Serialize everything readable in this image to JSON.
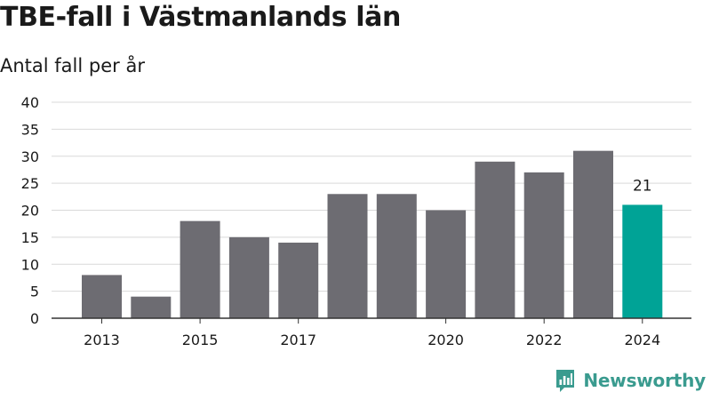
{
  "header": {
    "title": "TBE-fall i Västmanlands län",
    "subtitle": "Antal fall per år"
  },
  "brand": {
    "name": "Newsworthy",
    "icon": "newsworthy-logo-icon",
    "color": "#3a9b8f"
  },
  "chart_data": {
    "type": "bar",
    "categories": [
      "2013",
      "2014",
      "2015",
      "2016",
      "2017",
      "2018",
      "2019",
      "2020",
      "2021",
      "2022",
      "2023",
      "2024"
    ],
    "x_tick_labels": [
      "2013",
      "",
      "2015",
      "",
      "2017",
      "",
      "",
      "2020",
      "",
      "2022",
      "",
      "2024"
    ],
    "values": [
      8,
      4,
      18,
      15,
      14,
      23,
      23,
      20,
      29,
      27,
      31,
      21
    ],
    "highlight_index": 11,
    "highlight_label": "21",
    "title": "TBE-fall i Västmanlands län",
    "subtitle": "Antal fall per år",
    "xlabel": "",
    "ylabel": "",
    "ylim": [
      0,
      40
    ],
    "yticks": [
      "0",
      "5",
      "10",
      "15",
      "20",
      "25",
      "30",
      "35",
      "40"
    ],
    "grid": true,
    "colors": {
      "bar": "#6d6c72",
      "highlight": "#00a396",
      "grid": "#d9d9d9",
      "axis": "#333333"
    }
  }
}
